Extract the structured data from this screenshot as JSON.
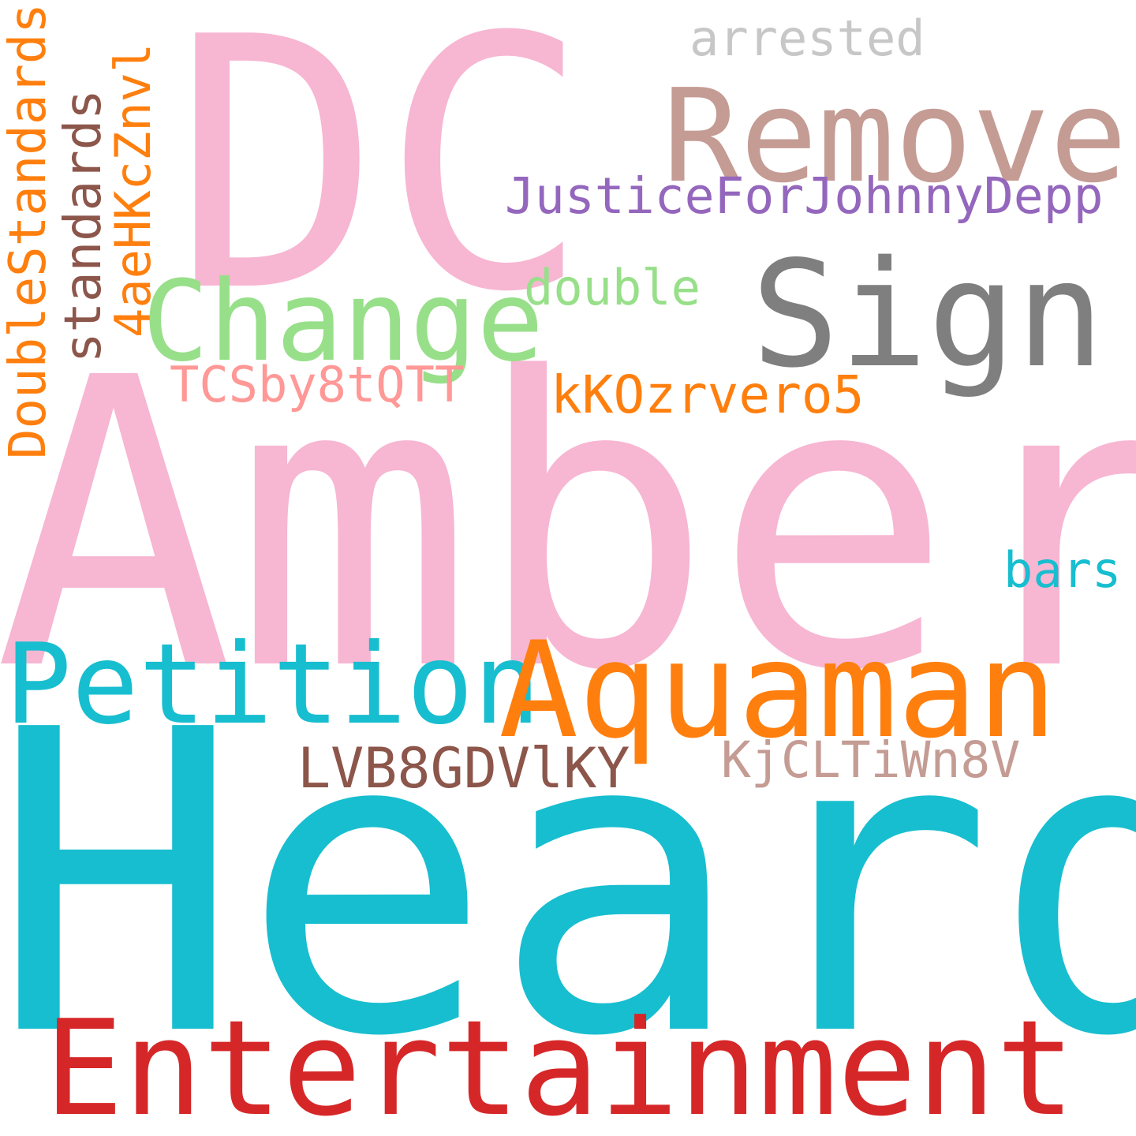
{
  "words": {
    "dc": {
      "text": "DC",
      "color": "#F7B6D2"
    },
    "amber": {
      "text": "Amber",
      "color": "#F7B6D2"
    },
    "heard": {
      "text": "Heard",
      "color": "#17BECF"
    },
    "remove": {
      "text": "Remove",
      "color": "#C49C94"
    },
    "sign": {
      "text": "Sign",
      "color": "#7F7F7F"
    },
    "change": {
      "text": "Change",
      "color": "#98DF8A"
    },
    "petition": {
      "text": "Petition",
      "color": "#17BECF"
    },
    "aquaman": {
      "text": "Aquaman",
      "color": "#FF7F0E"
    },
    "entertainment": {
      "text": "Entertainment",
      "color": "#D62728"
    },
    "justice": {
      "text": "JusticeForJohnnyDepp",
      "color": "#9467BD"
    },
    "arrested": {
      "text": "arrested",
      "color": "#C7C7C7"
    },
    "double": {
      "text": "double",
      "color": "#98DF8A"
    },
    "kkozrvero5": {
      "text": "kKOzrvero5",
      "color": "#FF7F0E"
    },
    "tcsby8tqtt": {
      "text": "TCSby8tQTT",
      "color": "#FF9896"
    },
    "bars": {
      "text": "bars",
      "color": "#17BECF"
    },
    "lvb8gdvlky": {
      "text": "LVB8GDVlKY",
      "color": "#8C564B"
    },
    "kjcltiwn8v": {
      "text": "KjCLTiWn8V",
      "color": "#C49C94"
    },
    "doublestandards": {
      "text": "DoubleStandards",
      "color": "#FF7F0E"
    },
    "standards": {
      "text": "standards",
      "color": "#8C564B"
    },
    "fourae": {
      "text": "4aeHKcZnvl",
      "color": "#FF7F0E"
    }
  }
}
